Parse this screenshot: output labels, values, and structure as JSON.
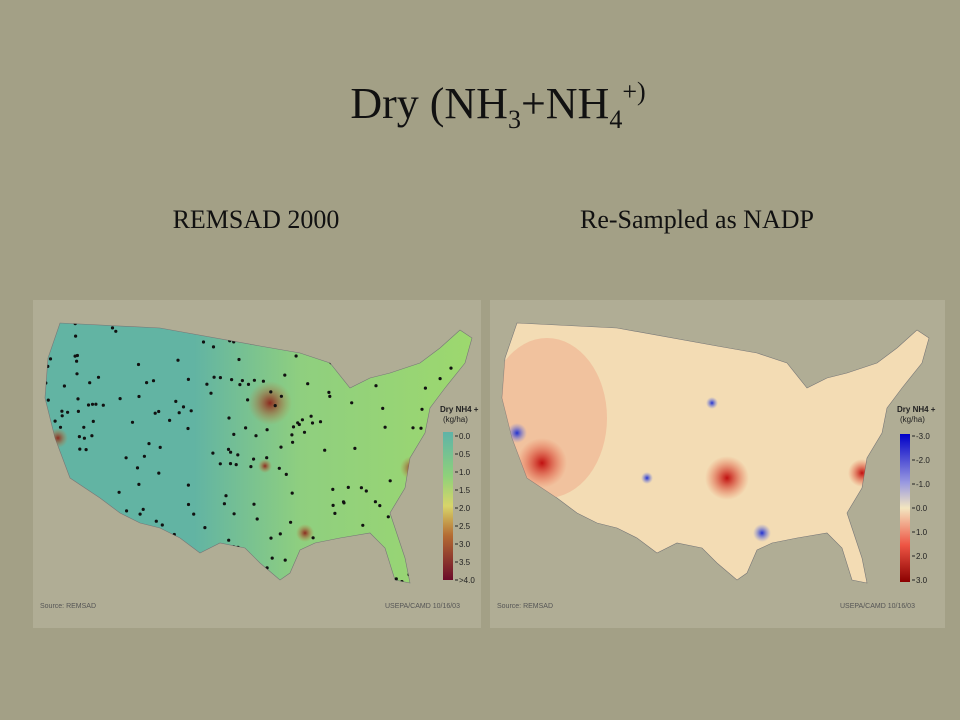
{
  "title": {
    "parts": [
      "Dry (NH",
      "3",
      "+NH",
      "4",
      "+)"
    ]
  },
  "panels": [
    {
      "subtitle": "REMSAD 2000",
      "legend": {
        "title": "Dry NH4 +",
        "unit": "(kg/ha)",
        "labels": [
          "0.0",
          "0.5",
          "1.0",
          "1.5",
          "2.0",
          "2.5",
          "3.0",
          "3.5",
          ">4.0"
        ]
      },
      "source": "Source: REMSAD",
      "credit": "USEPA/CAMD 10/16/03"
    },
    {
      "subtitle": "Re-Sampled as NADP",
      "legend": {
        "title": "Dry NH4 +",
        "unit": "(kg/ha)",
        "labels": [
          "-3.0",
          "-2.0",
          "-1.0",
          "0.0",
          "1.0",
          "2.0",
          "3.0"
        ]
      },
      "source": "Source: REMSAD",
      "credit": "USEPA/CAMD 10/16/03"
    }
  ]
}
